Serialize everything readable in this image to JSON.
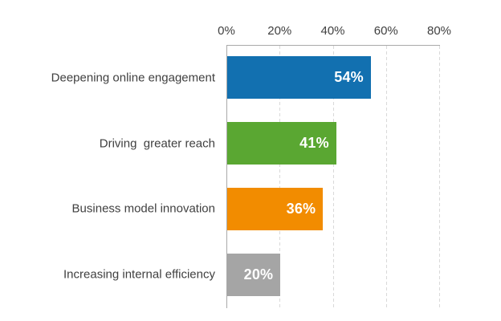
{
  "chart_data": {
    "type": "bar",
    "orientation": "horizontal",
    "title": "",
    "categories": [
      "Deepening online engagement",
      "Driving  greater reach",
      "Business model innovation",
      "Increasing internal efficiency"
    ],
    "values": [
      54,
      41,
      36,
      20
    ],
    "value_labels": [
      "54%",
      "41%",
      "36%",
      "20%"
    ],
    "bar_colors": [
      "#1270B0",
      "#5AA732",
      "#F28C00",
      "#A5A5A5"
    ],
    "x_axis": {
      "position": "top",
      "tick_labels": [
        "0%",
        "20%",
        "40%",
        "60%",
        "80%"
      ],
      "tick_values": [
        0,
        20,
        40,
        60,
        80
      ],
      "min": 0,
      "max": 80
    },
    "grid": "dashed-vertical",
    "legend": "none",
    "colors": {
      "axis_line": "#A9A9A9",
      "gridline": "#D9D9D9",
      "tick_label": "#404040",
      "category_label": "#404040",
      "value_label": "#FFFFFF",
      "background": "#FFFFFF"
    }
  }
}
